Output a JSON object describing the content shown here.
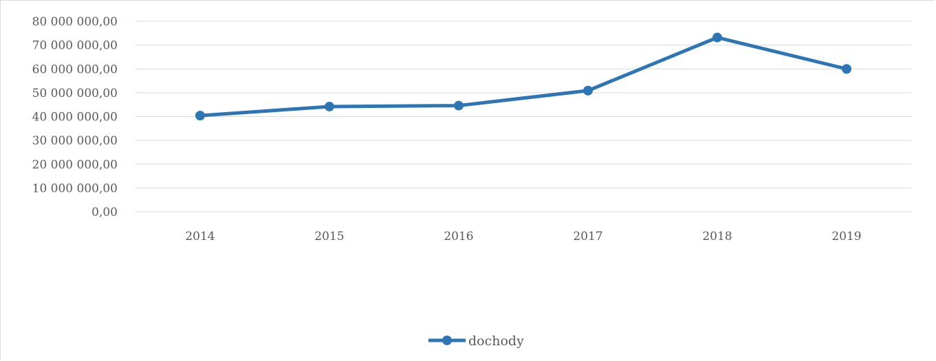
{
  "chart_data": {
    "type": "line",
    "title": "",
    "xlabel": "",
    "ylabel": "",
    "categories": [
      "2014",
      "2015",
      "2016",
      "2017",
      "2018",
      "2019"
    ],
    "series": [
      {
        "name": "dochody",
        "values": [
          40400000,
          44200000,
          44600000,
          50900000,
          73200000,
          60000000
        ],
        "color": "#2e75b6"
      }
    ],
    "ylim": [
      0,
      80000000
    ],
    "y_ticks": [
      "0,00",
      "10 000 000,00",
      "20 000 000,00",
      "30 000 000,00",
      "40 000 000,00",
      "50 000 000,00",
      "60 000 000,00",
      "70 000 000,00",
      "80 000 000,00"
    ],
    "grid": true,
    "legend_position": "bottom",
    "gridline_color": "#d9d9d9",
    "label_color": "#595959"
  }
}
